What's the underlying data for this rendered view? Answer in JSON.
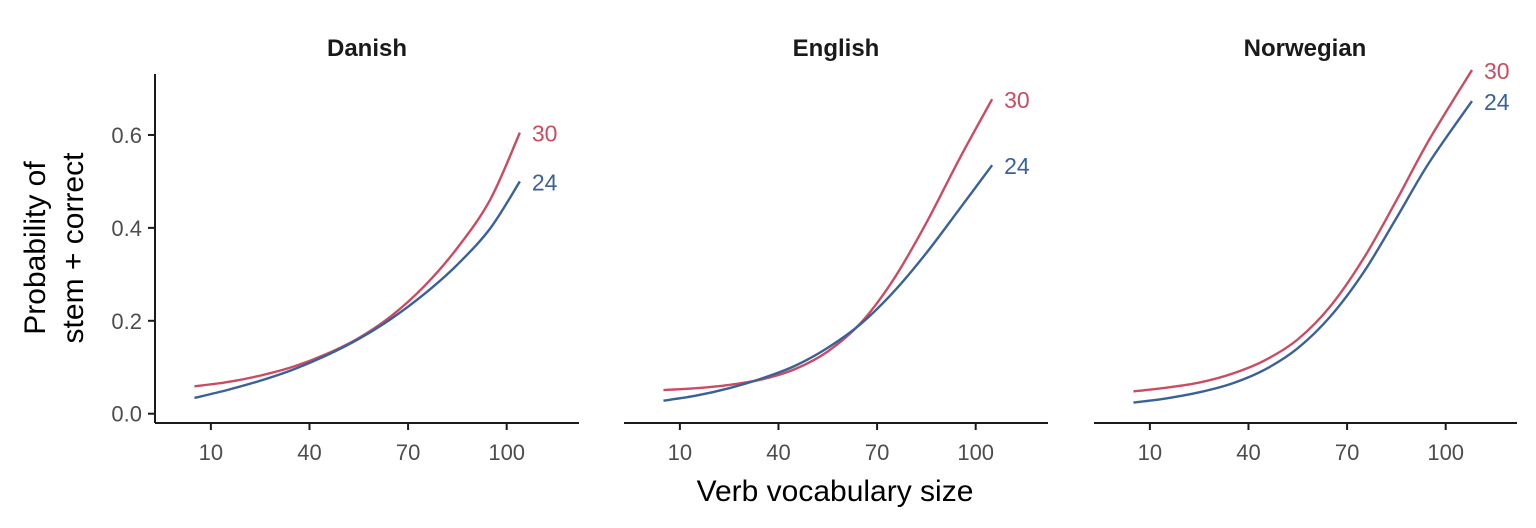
{
  "chart_data": {
    "type": "line",
    "xlabel": "Verb vocabulary size",
    "ylabel_lines": [
      "Probability of",
      "stem + correct"
    ],
    "xlim": [
      -7,
      122
    ],
    "ylim": [
      -0.02,
      0.77
    ],
    "x_ticks": [
      10,
      40,
      70,
      100
    ],
    "y_ticks": [
      0.0,
      0.2,
      0.4,
      0.6
    ],
    "y_tick_labels": [
      "0.0",
      "0.2",
      "0.4",
      "0.6"
    ],
    "grid": false,
    "legend": "none (series labeled at line ends)",
    "colors": {
      "30": "#C94C63",
      "24": "#3A6294"
    },
    "panels": [
      {
        "title": "Danish",
        "series": [
          {
            "name": "30",
            "x": [
              5,
              15,
              25,
              35,
              45,
              55,
              65,
              75,
              85,
              95,
              104
            ],
            "y": [
              0.059,
              0.068,
              0.082,
              0.101,
              0.128,
              0.163,
              0.211,
              0.275,
              0.357,
              0.461,
              0.605
            ]
          },
          {
            "name": "24",
            "x": [
              5,
              15,
              25,
              35,
              45,
              55,
              65,
              75,
              85,
              95,
              104
            ],
            "y": [
              0.034,
              0.051,
              0.071,
              0.095,
              0.125,
              0.161,
              0.205,
              0.258,
              0.321,
              0.399,
              0.5
            ]
          }
        ]
      },
      {
        "title": "English",
        "series": [
          {
            "name": "30",
            "x": [
              5,
              15,
              25,
              35,
              45,
              55,
              65,
              75,
              85,
              95,
              105
            ],
            "y": [
              0.051,
              0.055,
              0.062,
              0.074,
              0.096,
              0.134,
              0.195,
              0.289,
              0.411,
              0.548,
              0.677
            ]
          },
          {
            "name": "24",
            "x": [
              5,
              15,
              25,
              35,
              45,
              55,
              65,
              75,
              85,
              95,
              105
            ],
            "y": [
              0.028,
              0.039,
              0.055,
              0.076,
              0.103,
              0.142,
              0.193,
              0.262,
              0.346,
              0.44,
              0.535
            ]
          }
        ]
      },
      {
        "title": "Norwegian",
        "series": [
          {
            "name": "30",
            "x": [
              5,
              15,
              25,
              35,
              45,
              55,
              65,
              75,
              85,
              95,
              108
            ],
            "y": [
              0.048,
              0.056,
              0.067,
              0.086,
              0.115,
              0.16,
              0.232,
              0.334,
              0.459,
              0.59,
              0.74
            ]
          },
          {
            "name": "24",
            "x": [
              5,
              15,
              25,
              35,
              45,
              55,
              65,
              75,
              85,
              95,
              108
            ],
            "y": [
              0.024,
              0.033,
              0.046,
              0.065,
              0.095,
              0.141,
              0.21,
              0.304,
              0.421,
              0.541,
              0.673
            ]
          }
        ]
      }
    ]
  }
}
